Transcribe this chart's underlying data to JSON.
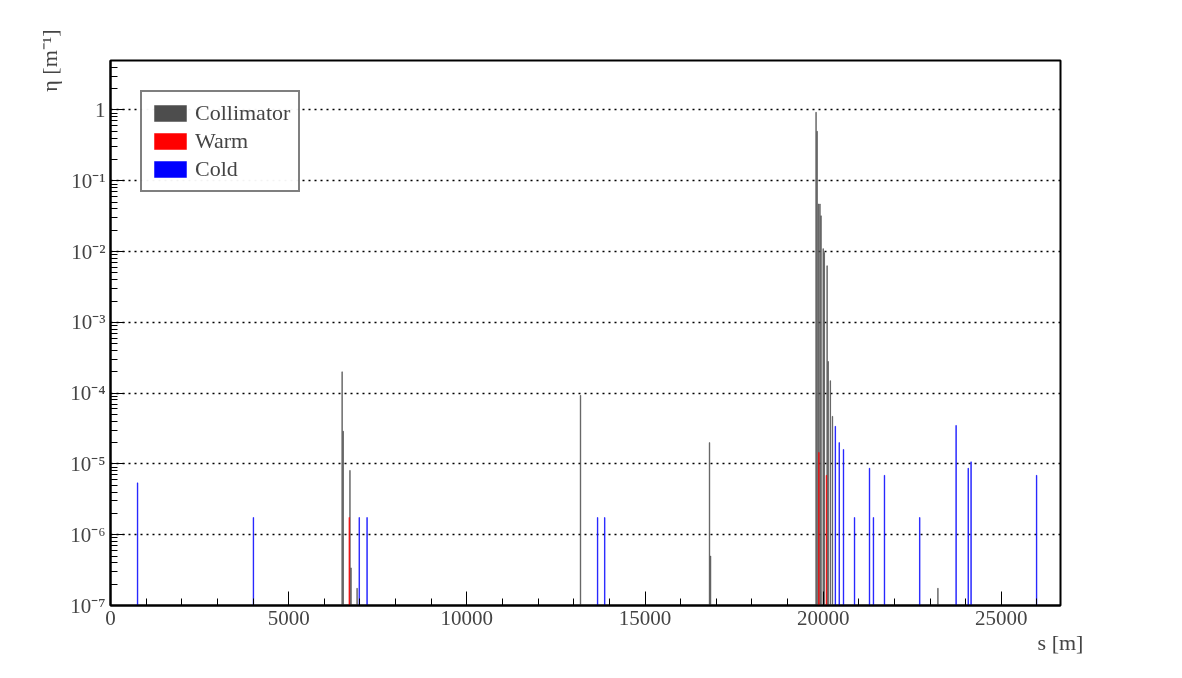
{
  "chart_data": {
    "type": "bar",
    "xlabel": "s [m]",
    "ylabel": "η [m⁻¹]",
    "log": "y",
    "grid": "y",
    "legend": "top left",
    "xlim": [
      0,
      26660
    ],
    "xticks": [
      0,
      5000,
      10000,
      15000,
      20000,
      25000
    ],
    "ylim": [
      1e-07,
      5
    ],
    "yticks": [
      {
        "value": 1e-07,
        "label": "10⁻⁷"
      },
      {
        "value": 1e-06,
        "label": "10⁻⁶"
      },
      {
        "value": 1e-05,
        "label": "10⁻⁵"
      },
      {
        "value": 0.0001,
        "label": "10⁻⁴"
      },
      {
        "value": 0.001,
        "label": "10⁻³"
      },
      {
        "value": 0.01,
        "label": "10⁻²"
      },
      {
        "value": 0.1,
        "label": "10⁻¹"
      },
      {
        "value": 1,
        "label": "1"
      }
    ],
    "series": [
      {
        "name": "Collimator",
        "color": "#4d4d4d",
        "x": [
          6500,
          6530,
          6720,
          6750,
          6920,
          13190,
          16810,
          16840,
          19800,
          19830,
          19870,
          19910,
          19940,
          20000,
          20030,
          20110,
          20140,
          20200,
          20260,
          23220
        ],
        "values": [
          0.0002,
          2.9e-05,
          8.1e-06,
          3.4e-07,
          1.75e-07,
          9.3e-05,
          2e-05,
          5e-07,
          0.93,
          0.5,
          0.047,
          0.047,
          0.032,
          0.011,
          0.0097,
          0.0063,
          0.00028,
          0.00015,
          4.7e-05,
          1.75e-07
        ]
      },
      {
        "name": "Warm",
        "color": "#ff0000",
        "x": [
          6700,
          19880,
          20090
        ],
        "values": [
          1.75e-06,
          1.45e-05,
          6.9e-06
        ]
      },
      {
        "name": "Cold",
        "color": "#0000ff",
        "x": [
          760,
          4010,
          6980,
          7200,
          13670,
          13870,
          20340,
          20450,
          20570,
          20880,
          21300,
          21410,
          21720,
          22710,
          23730,
          24070,
          24150,
          25990
        ],
        "values": [
          5.4e-06,
          1.75e-06,
          1.75e-06,
          1.75e-06,
          1.75e-06,
          1.75e-06,
          3.4e-05,
          2e-05,
          1.6e-05,
          1.75e-06,
          8.7e-06,
          1.75e-06,
          6.9e-06,
          1.75e-06,
          3.5e-05,
          8.7e-06,
          1.07e-05,
          6.9e-06
        ]
      }
    ]
  }
}
